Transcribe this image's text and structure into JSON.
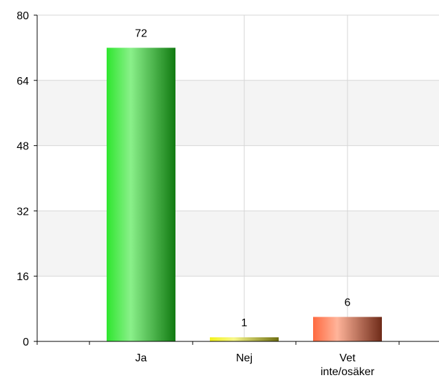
{
  "chart_data": {
    "type": "bar",
    "categories": [
      "Ja",
      "Nej",
      "Vet inte/osäker"
    ],
    "category_lines": [
      [
        "Ja"
      ],
      [
        "Nej"
      ],
      [
        "Vet",
        "inte/osäker"
      ]
    ],
    "values": [
      72,
      1,
      6
    ],
    "value_labels": [
      "72",
      "1",
      "6"
    ],
    "ylim": [
      0,
      80
    ],
    "yticks": [
      0,
      16,
      32,
      48,
      64,
      80
    ],
    "ytick_labels": [
      "0",
      "16",
      "32",
      "48",
      "64",
      "80"
    ],
    "grid": true,
    "legend": false,
    "colors": {
      "Ja": [
        "#2ee62e",
        "#8af08a",
        "#117a11"
      ],
      "Nej": [
        "#f2f21a",
        "#f7f78a",
        "#6e6e10"
      ],
      "Vet inte/osäker": [
        "#ff6a40",
        "#ffb49a",
        "#6e2a18"
      ],
      "band": "#f4f4f4",
      "grid": "#d6d6d6",
      "axis": "#000000"
    }
  }
}
